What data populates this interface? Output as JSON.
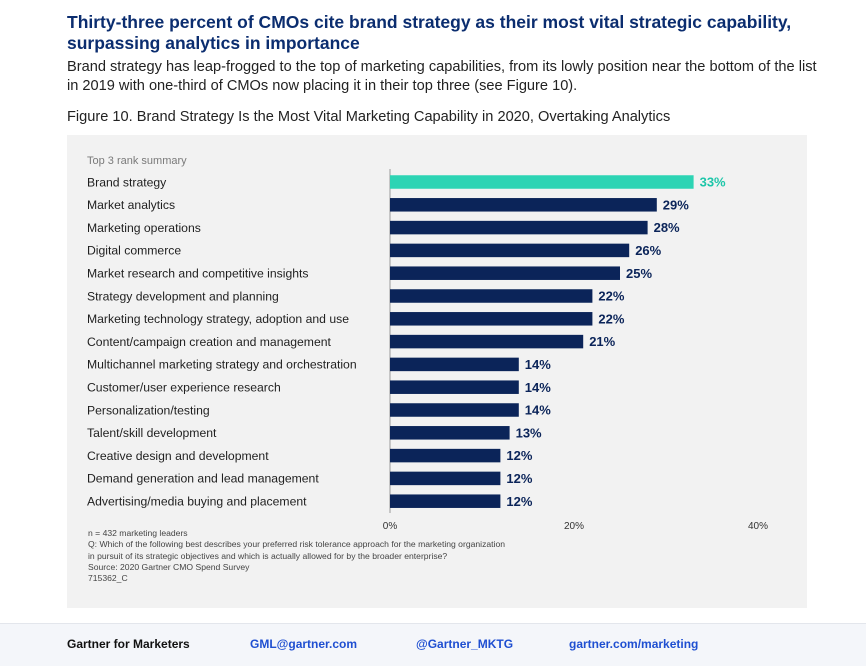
{
  "headline": "Thirty-three percent of CMOs cite brand strategy as their most vital strategic capability, surpassing analytics in importance",
  "intro": "Brand strategy has leap-frogged to the top of marketing capabilities, from its lowly position near the bottom of the list in 2019 with one-third of CMOs now placing it in their top three (see Figure 10).",
  "figure_caption": "Figure 10. Brand Strategy Is the Most Vital Marketing Capability in 2020, Overtaking Analytics",
  "chart_data": {
    "type": "bar",
    "orientation": "horizontal",
    "summary_label": "Top 3 rank summary",
    "categories": [
      "Brand strategy",
      "Market analytics",
      "Marketing operations",
      "Digital commerce",
      "Market research and competitive insights",
      "Strategy development and planning",
      "Marketing technology strategy, adoption and use",
      "Content/campaign creation and management",
      "Multichannel marketing strategy and orchestration",
      "Customer/user experience research",
      "Personalization/testing",
      "Talent/skill development",
      "Creative design and development",
      "Demand generation and lead management",
      "Advertising/media buying and placement"
    ],
    "values": [
      33,
      29,
      28,
      26,
      25,
      22,
      22,
      21,
      14,
      14,
      14,
      13,
      12,
      12,
      12
    ],
    "value_labels": [
      "33%",
      "29%",
      "28%",
      "26%",
      "25%",
      "22%",
      "22%",
      "21%",
      "14%",
      "14%",
      "14%",
      "13%",
      "12%",
      "12%",
      "12%"
    ],
    "xlim": [
      0,
      40
    ],
    "ticks": [
      0,
      20,
      40
    ],
    "tick_labels": [
      "0%",
      "20%",
      "40%"
    ],
    "grid": false,
    "colors": {
      "highlight": "#2dd4b4",
      "bar": "#0b2459",
      "highlight_label": "#1dc6a9",
      "label": "#0b2459"
    },
    "highlight_index": 0
  },
  "notes": [
    "n = 432 marketing leaders",
    "Q: Which of the following best describes your preferred risk tolerance approach for the marketing organization",
    "in pursuit of its strategic objectives and which is actually allowed for by the broader enterprise?",
    "Source: 2020 Gartner CMO Spend Survey",
    "715362_C"
  ],
  "footer": {
    "brand": "Gartner for Marketers",
    "email": "GML@gartner.com",
    "twitter": "@Gartner_MKTG",
    "website": "gartner.com/marketing"
  }
}
